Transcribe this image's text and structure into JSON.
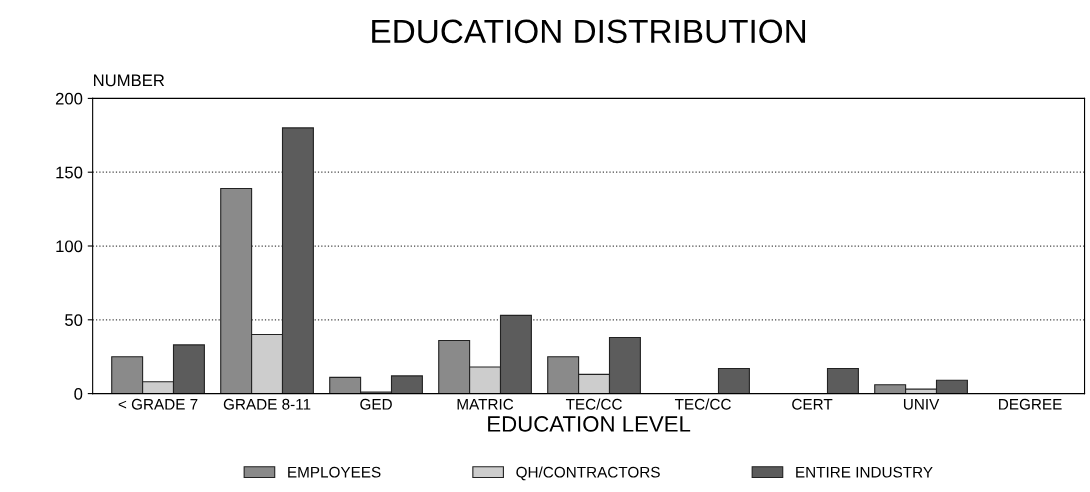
{
  "chart_data": {
    "type": "bar",
    "title": "EDUCATION DISTRIBUTION",
    "xlabel": "EDUCATION LEVEL",
    "ylabel": "NUMBER",
    "categories": [
      "< GRADE 7",
      "GRADE 8-11",
      "GED",
      "MATRIC",
      "TEC/CC",
      "TEC/CC",
      "CERT",
      "UNIV",
      "DEGREE"
    ],
    "series": [
      {
        "name": "EMPLOYEES",
        "color": "#8a8a8a",
        "values": [
          25,
          139,
          11,
          36,
          25,
          null,
          null,
          6,
          null
        ]
      },
      {
        "name": "QH/CONTRACTORS",
        "color": "#cdcdcd",
        "values": [
          8,
          40,
          1,
          18,
          13,
          null,
          null,
          3,
          null
        ]
      },
      {
        "name": "ENTIRE INDUSTRY",
        "color": "#5c5c5c",
        "values": [
          33,
          180,
          12,
          53,
          38,
          17,
          17,
          9,
          null
        ]
      }
    ],
    "ylim": [
      0,
      200
    ],
    "yticks": [
      0,
      50,
      100,
      150,
      200
    ],
    "grid": "y",
    "legend": "bottom"
  }
}
